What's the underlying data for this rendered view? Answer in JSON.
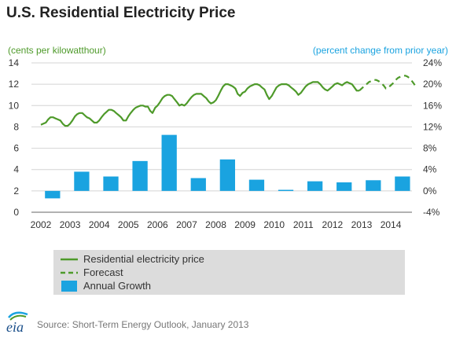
{
  "title": "U.S. Residential Electricity Price",
  "source": "Source: Short-Term Energy Outlook, January 2013",
  "logo_text": "eia",
  "colors": {
    "price": "#4e9a2a",
    "growth": "#1aa3e0",
    "left_axis": "#4e9a2a",
    "right_axis": "#1aa3e0"
  },
  "legend": {
    "price": "Residential electricity price",
    "forecast": "Forecast",
    "growth": "Annual Growth"
  },
  "chart_data": {
    "type": "bar+line",
    "title": "U.S. Residential Electricity Price",
    "y_left": {
      "label": "(cents per kilowatthour)",
      "range": [
        0,
        14
      ],
      "ticks": [
        0,
        2,
        4,
        6,
        8,
        10,
        12,
        14
      ]
    },
    "y_right": {
      "label": "(percent change from prior year)",
      "range": [
        -4,
        24
      ],
      "ticks": [
        -4,
        0,
        4,
        8,
        12,
        16,
        20,
        24
      ],
      "tick_suffix": "%"
    },
    "x_ticks": [
      "2002",
      "2003",
      "2004",
      "2005",
      "2006",
      "2007",
      "2008",
      "2009",
      "2010",
      "2011",
      "2012",
      "2013",
      "2014"
    ],
    "legend_position": "bottom",
    "grid": "horizontal",
    "annual_growth": {
      "name": "Annual Growth",
      "years": [
        "2002",
        "2003",
        "2004",
        "2005",
        "2006",
        "2007",
        "2008",
        "2009",
        "2010",
        "2011",
        "2012",
        "2013",
        "2014"
      ],
      "values": [
        -1.4,
        3.6,
        2.7,
        5.6,
        10.5,
        2.4,
        5.9,
        2.1,
        0.2,
        1.8,
        1.6,
        2.0,
        2.7
      ]
    },
    "price_history": {
      "name": "Residential electricity price",
      "t": [
        2002.0,
        2002.08,
        2002.17,
        2002.25,
        2002.33,
        2002.42,
        2002.5,
        2002.58,
        2002.67,
        2002.75,
        2002.83,
        2002.92,
        2003.0,
        2003.08,
        2003.17,
        2003.25,
        2003.33,
        2003.42,
        2003.5,
        2003.58,
        2003.67,
        2003.75,
        2003.83,
        2003.92,
        2004.0,
        2004.08,
        2004.17,
        2004.25,
        2004.33,
        2004.42,
        2004.5,
        2004.58,
        2004.67,
        2004.75,
        2004.83,
        2004.92,
        2005.0,
        2005.08,
        2005.17,
        2005.25,
        2005.33,
        2005.42,
        2005.5,
        2005.58,
        2005.67,
        2005.75,
        2005.83,
        2005.92,
        2006.0,
        2006.08,
        2006.17,
        2006.25,
        2006.33,
        2006.42,
        2006.5,
        2006.58,
        2006.67,
        2006.75,
        2006.83,
        2006.92,
        2007.0,
        2007.08,
        2007.17,
        2007.25,
        2007.33,
        2007.42,
        2007.5,
        2007.58,
        2007.67,
        2007.75,
        2007.83,
        2007.92,
        2008.0,
        2008.08,
        2008.17,
        2008.25,
        2008.33,
        2008.42,
        2008.5,
        2008.58,
        2008.67,
        2008.75,
        2008.83,
        2008.92,
        2009.0,
        2009.08,
        2009.17,
        2009.25,
        2009.33,
        2009.42,
        2009.5,
        2009.58,
        2009.67,
        2009.75,
        2009.83,
        2009.92,
        2010.0,
        2010.08,
        2010.17,
        2010.25,
        2010.33,
        2010.42,
        2010.5,
        2010.58,
        2010.67,
        2010.75,
        2010.83,
        2010.92,
        2011.0,
        2011.08,
        2011.17,
        2011.25,
        2011.33,
        2011.42,
        2011.5,
        2011.58,
        2011.67,
        2011.75,
        2011.83,
        2011.92,
        2012.0,
        2012.08,
        2012.17,
        2012.25,
        2012.33,
        2012.42,
        2012.5,
        2012.58,
        2012.67,
        2012.75,
        2012.83,
        2012.92
      ],
      "values": [
        8.2,
        8.3,
        8.4,
        8.7,
        8.9,
        8.9,
        8.8,
        8.7,
        8.6,
        8.3,
        8.1,
        8.1,
        8.3,
        8.6,
        9.0,
        9.2,
        9.3,
        9.3,
        9.1,
        8.9,
        8.8,
        8.6,
        8.4,
        8.4,
        8.6,
        8.9,
        9.2,
        9.4,
        9.6,
        9.6,
        9.5,
        9.3,
        9.1,
        8.9,
        8.6,
        8.6,
        9.0,
        9.3,
        9.6,
        9.8,
        9.9,
        10.0,
        10.0,
        9.9,
        9.9,
        9.5,
        9.3,
        9.8,
        10.0,
        10.3,
        10.7,
        10.9,
        11.0,
        11.0,
        10.9,
        10.6,
        10.3,
        10.0,
        10.1,
        10.0,
        10.2,
        10.5,
        10.8,
        11.0,
        11.1,
        11.1,
        11.1,
        10.9,
        10.7,
        10.4,
        10.2,
        10.3,
        10.5,
        10.9,
        11.4,
        11.8,
        12.0,
        12.0,
        11.9,
        11.8,
        11.6,
        11.1,
        10.9,
        11.2,
        11.3,
        11.6,
        11.8,
        11.9,
        12.0,
        12.0,
        11.9,
        11.7,
        11.5,
        11.0,
        10.6,
        10.9,
        11.3,
        11.7,
        11.9,
        12.0,
        12.0,
        12.0,
        11.9,
        11.7,
        11.5,
        11.3,
        11.0,
        11.2,
        11.5,
        11.8,
        12.0,
        12.1,
        12.2,
        12.2,
        12.2,
        12.0,
        11.7,
        11.5,
        11.4,
        11.6,
        11.8,
        12.0,
        12.1,
        12.0,
        11.9,
        12.1,
        12.2,
        12.1,
        12.0,
        11.7,
        11.4,
        11.4
      ]
    },
    "price_forecast": {
      "name": "Forecast",
      "t": [
        2012.92,
        2013.0,
        2013.08,
        2013.17,
        2013.25,
        2013.33,
        2013.42,
        2013.5,
        2013.58,
        2013.67,
        2013.75,
        2013.83,
        2013.92,
        2014.0,
        2014.08,
        2014.17,
        2014.25,
        2014.33,
        2014.42,
        2014.5,
        2014.58,
        2014.67,
        2014.75,
        2014.83,
        2014.92
      ],
      "values": [
        11.4,
        11.6,
        11.8,
        12.0,
        12.2,
        12.3,
        12.4,
        12.4,
        12.3,
        12.1,
        11.9,
        11.6,
        11.7,
        11.9,
        12.1,
        12.4,
        12.6,
        12.7,
        12.8,
        12.8,
        12.7,
        12.5,
        12.2,
        11.9,
        12.0
      ]
    }
  }
}
